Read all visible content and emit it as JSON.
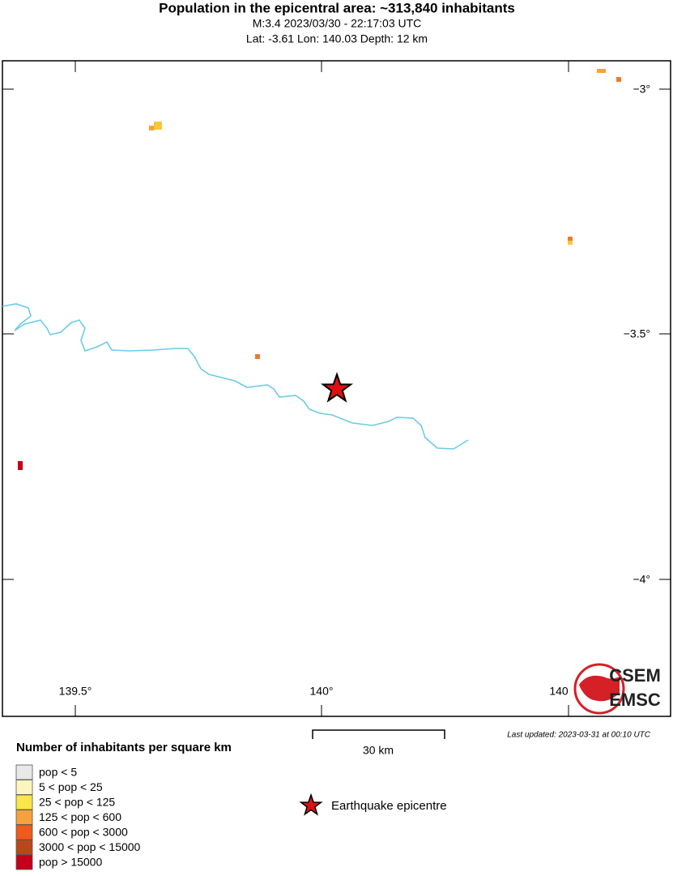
{
  "header": {
    "title": "Population in the epicentral area: ~313,840 inhabitants",
    "line1": "M:3.4 2023/03/30 - 22:17:03 UTC",
    "line2": "Lat: -3.61 Lon: 140.03 Depth: 12 km"
  },
  "map": {
    "lat_ticks": [
      "−3°",
      "−3.5°",
      "−4°"
    ],
    "lon_ticks": [
      "139.5°",
      "140°",
      "140"
    ],
    "scale_label": "30 km",
    "last_updated": "Last updated: 2023-03-31 at 00:10 UTC",
    "logo": [
      "CSEM",
      "EMSC"
    ]
  },
  "legend": {
    "title": "Number of inhabitants per square km",
    "items": [
      {
        "label": "pop < 5",
        "color": "#e8e8e8"
      },
      {
        "label": "5 < pop < 25",
        "color": "#fbf6bd"
      },
      {
        "label": "25 < pop < 125",
        "color": "#fbe64a"
      },
      {
        "label": "125 < pop < 600",
        "color": "#f6a23a"
      },
      {
        "label": "600 < pop < 3000",
        "color": "#f05a1e"
      },
      {
        "label": "3000 < pop < 15000",
        "color": "#b8481a"
      },
      {
        "label": "pop > 15000",
        "color": "#c4001a"
      }
    ],
    "epicentre": "Earthquake epicentre"
  }
}
